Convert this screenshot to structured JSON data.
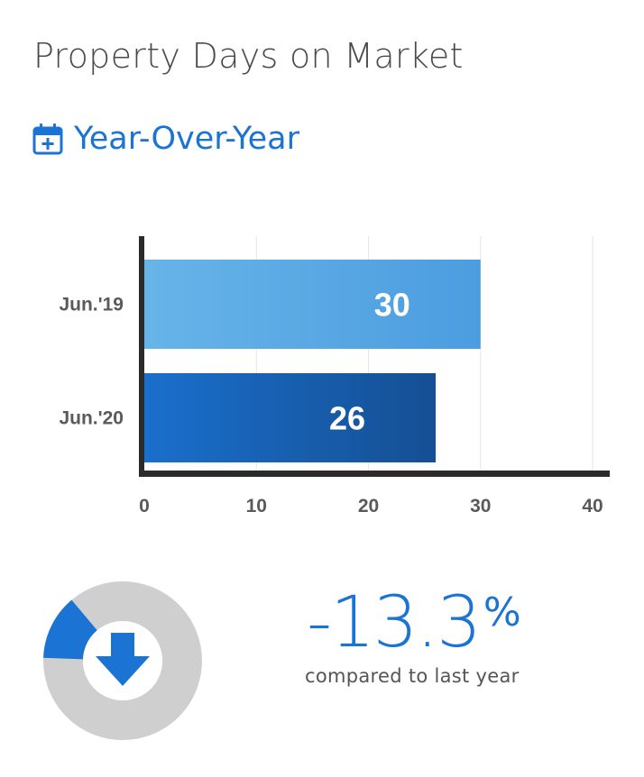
{
  "title": "Property Days on Market",
  "subtitle": {
    "label": "Year-Over-Year",
    "icon": "calendar-plus-icon"
  },
  "colors": {
    "accent": "#1b73d3",
    "bar_prev": "#5aa7e3",
    "bar_curr": "#175fb8",
    "axis": "#2b2b2b",
    "donut_track": "#cfcfcf"
  },
  "chart_data": {
    "type": "bar",
    "orientation": "horizontal",
    "categories": [
      "Jun.'19",
      "Jun.'20"
    ],
    "values": [
      30,
      26
    ],
    "data_labels": [
      "30",
      "26"
    ],
    "xlim": [
      0,
      40
    ],
    "xticks": [
      0,
      10,
      20,
      30,
      40
    ],
    "xtick_labels": [
      "0",
      "10",
      "20",
      "30",
      "40"
    ],
    "grid": true,
    "title": "",
    "xlabel": "",
    "ylabel": ""
  },
  "change": {
    "value": "-13.3",
    "symbol": "%",
    "fraction": 0.133,
    "direction": "down",
    "icon": "arrow-down-icon",
    "caption": "compared to last year"
  }
}
